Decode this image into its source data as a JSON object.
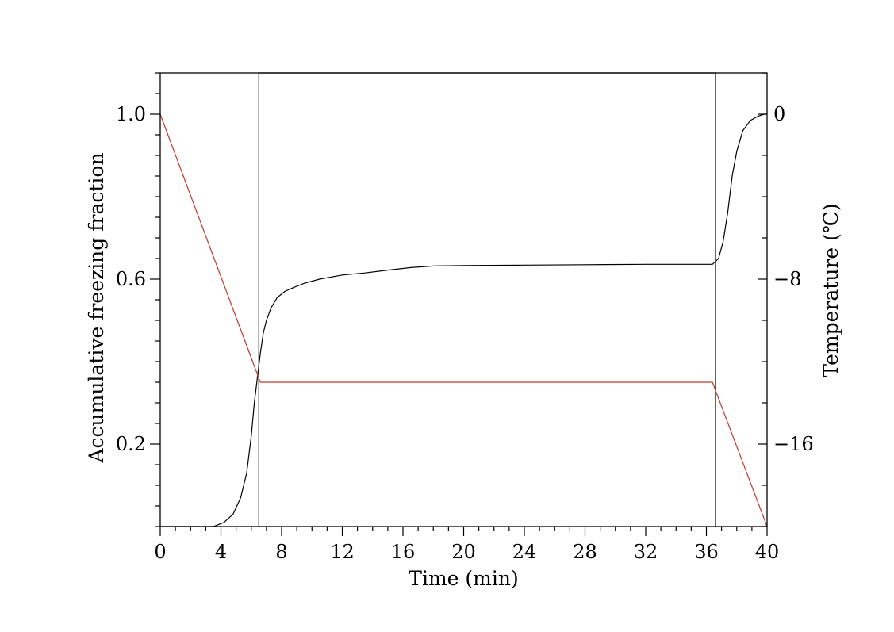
{
  "chart_data": {
    "type": "line",
    "title": "",
    "xlabel": "Time (min)",
    "ylabel_left": "Accumulative freezing fraction",
    "ylabel_right": "Temperature (℃)",
    "xlim": [
      0,
      40
    ],
    "ylim_left": [
      0.0,
      1.1
    ],
    "ylim_right": [
      -20,
      2
    ],
    "x_ticks": [
      0,
      4,
      8,
      12,
      16,
      20,
      24,
      28,
      32,
      36,
      40
    ],
    "y_left_ticks": [
      0.2,
      0.6,
      1.0
    ],
    "y_left_tick_labels": [
      "0.2",
      "0.6",
      "1.0"
    ],
    "y_right_ticks": [
      0,
      -8,
      -16
    ],
    "y_right_tick_labels": [
      "0",
      "−8",
      "−16"
    ],
    "grid": false,
    "series": [
      {
        "axis": "left",
        "color": "#000000",
        "x": [
          0,
          3.5,
          4.2,
          4.8,
          5.3,
          5.7,
          6.0,
          6.2,
          6.4,
          6.6,
          6.8,
          7.0,
          7.3,
          7.7,
          8.2,
          8.8,
          9.5,
          10.5,
          12,
          13.5,
          15,
          16.5,
          18,
          20,
          24,
          28,
          32,
          36.4,
          36.8,
          37.1,
          37.4,
          37.7,
          38.0,
          38.4,
          38.9,
          39.4,
          39.8,
          40
        ],
        "y": [
          0.0,
          0.0,
          0.01,
          0.03,
          0.07,
          0.13,
          0.22,
          0.3,
          0.36,
          0.42,
          0.47,
          0.5,
          0.53,
          0.555,
          0.57,
          0.58,
          0.59,
          0.6,
          0.61,
          0.615,
          0.622,
          0.628,
          0.632,
          0.633,
          0.634,
          0.635,
          0.636,
          0.636,
          0.65,
          0.69,
          0.76,
          0.85,
          0.91,
          0.96,
          0.985,
          0.995,
          1.0,
          1.0
        ]
      },
      {
        "axis": "right",
        "color": "#000000",
        "x": [
          6.5,
          6.5,
          6.6,
          36.4,
          36.6,
          36.6
        ],
        "y": [
          -20,
          2,
          2,
          2,
          2,
          -20
        ]
      },
      {
        "axis": "right",
        "color": "#c0392b",
        "x": [
          0,
          6.6,
          36.4,
          40
        ],
        "y": [
          0,
          -13,
          -13,
          -20
        ]
      }
    ]
  }
}
